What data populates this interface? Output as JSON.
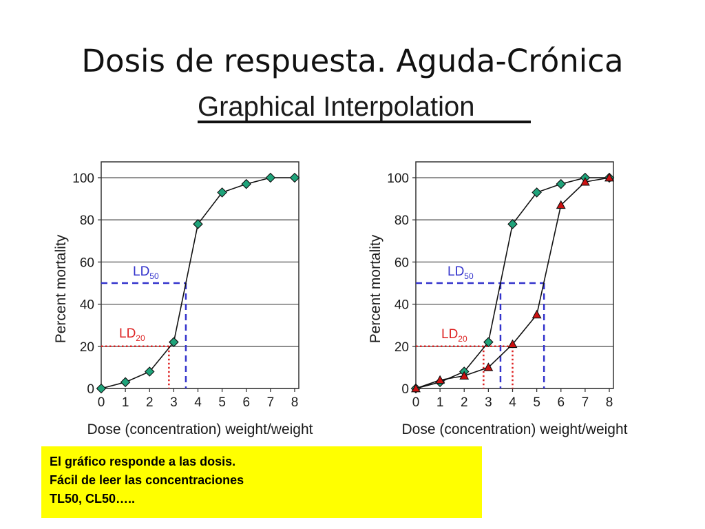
{
  "slide": {
    "title": "Dosis de respuesta. Aguda-Crónica",
    "subtitle": "Graphical Interpolation"
  },
  "note": {
    "lines": [
      "El gráfico responde a las dosis.",
      "Fácil de leer las concentraciones",
      "TL50, CL50….."
    ],
    "background": "#ffff00"
  },
  "colors": {
    "series_marker_green": "#1fa37a",
    "series_marker_red": "#cc1111",
    "ld50_line": "#3333cc",
    "ld20_line": "#dd2222"
  },
  "chart_data": [
    {
      "type": "line",
      "xlabel": "Dose (concentration) weight/weight",
      "ylabel": "Percent mortality",
      "xlim": [
        0,
        8
      ],
      "ylim": [
        0,
        100
      ],
      "xticks": [
        "0",
        "1",
        "2",
        "3",
        "4",
        "5",
        "6",
        "7",
        "8"
      ],
      "yticks": [
        "0",
        "20",
        "40",
        "60",
        "80",
        "100"
      ],
      "grid": "horizontal",
      "series": [
        {
          "marker": "diamond",
          "color": "#1fa37a",
          "x": [
            0,
            1,
            2,
            3,
            4,
            5,
            6,
            7,
            8
          ],
          "y": [
            0,
            3,
            8,
            22,
            78,
            93,
            97,
            100,
            100
          ]
        }
      ],
      "annotations": [
        {
          "label": "LD",
          "subscript": "50",
          "y": 50,
          "x": 3.5,
          "color": "#3333cc",
          "style": "dashed"
        },
        {
          "label": "LD",
          "subscript": "20",
          "y": 20,
          "x": 2.8,
          "color": "#dd2222",
          "style": "dotted"
        }
      ]
    },
    {
      "type": "line",
      "xlabel": "Dose (concentration) weight/weight",
      "ylabel": "Percent mortality",
      "xlim": [
        0,
        8
      ],
      "ylim": [
        0,
        100
      ],
      "xticks": [
        "0",
        "1",
        "2",
        "3",
        "4",
        "5",
        "6",
        "7",
        "8"
      ],
      "yticks": [
        "0",
        "20",
        "40",
        "60",
        "80",
        "100"
      ],
      "grid": "horizontal",
      "series": [
        {
          "marker": "diamond",
          "color": "#1fa37a",
          "x": [
            0,
            1,
            2,
            3,
            4,
            5,
            6,
            7,
            8
          ],
          "y": [
            0,
            3,
            8,
            22,
            78,
            93,
            97,
            100,
            100
          ]
        },
        {
          "marker": "triangle",
          "color": "#cc1111",
          "x": [
            0,
            1,
            2,
            3,
            4,
            5,
            6,
            7,
            8
          ],
          "y": [
            0,
            4,
            6,
            10,
            21,
            35,
            87,
            98,
            100
          ]
        }
      ],
      "annotations": [
        {
          "label": "LD",
          "subscript": "50",
          "y": 50,
          "x": [
            3.5,
            5.3
          ],
          "color": "#3333cc",
          "style": "dashed"
        },
        {
          "label": "LD",
          "subscript": "20",
          "y": 20,
          "x": [
            2.8,
            4.0
          ],
          "color": "#dd2222",
          "style": "dotted"
        }
      ]
    }
  ]
}
